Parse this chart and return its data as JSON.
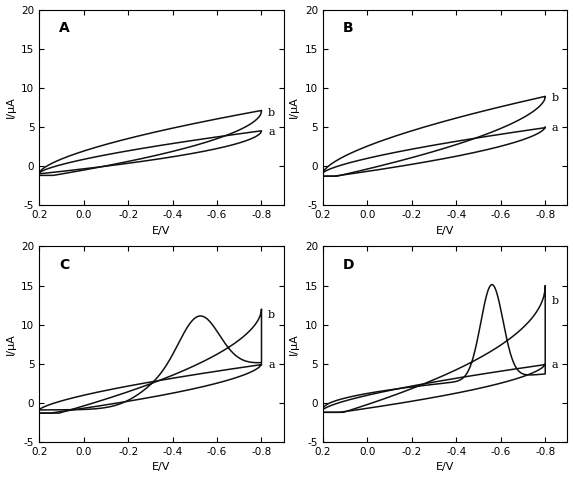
{
  "panels": [
    "A",
    "B",
    "C",
    "D"
  ],
  "xlim": [
    0.2,
    -0.9
  ],
  "ylim": [
    -5,
    20
  ],
  "yticks": [
    -5,
    0,
    5,
    10,
    15,
    20
  ],
  "xticks": [
    0.2,
    0.0,
    -0.2,
    -0.4,
    -0.6,
    -0.8
  ],
  "xlabel": "E/V",
  "ylabel": "I/μA",
  "bg_color": "#ffffff",
  "line_color": "#111111",
  "label_fontsize": 8,
  "panel_label_fontsize": 10,
  "tick_fontsize": 7.5
}
